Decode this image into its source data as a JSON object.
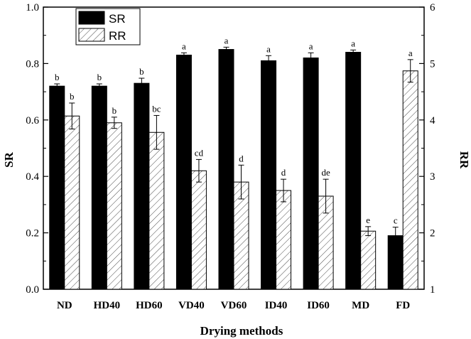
{
  "chart_data": {
    "type": "bar",
    "xlabel": "Drying methods",
    "ylabel_left": "SR",
    "ylabel_right": "RR",
    "ylim_left": [
      0.0,
      1.0
    ],
    "ylim_right": [
      1,
      6
    ],
    "yticks_left": [
      "0.0",
      "0.2",
      "0.4",
      "0.6",
      "0.8",
      "1.0"
    ],
    "yticks_right": [
      "1",
      "2",
      "3",
      "4",
      "5",
      "6"
    ],
    "categories": [
      "ND",
      "HD40",
      "HD60",
      "VD40",
      "VD60",
      "ID40",
      "ID60",
      "MD",
      "FD"
    ],
    "legend_position": "top-left",
    "series": [
      {
        "name": "SR",
        "axis": "left",
        "fill": "solid",
        "color": "#000000",
        "values": [
          0.72,
          0.72,
          0.73,
          0.83,
          0.85,
          0.81,
          0.82,
          0.84,
          0.19
        ],
        "errors": [
          0.008,
          0.008,
          0.018,
          0.008,
          0.008,
          0.018,
          0.018,
          0.008,
          0.03
        ],
        "letters": [
          "b",
          "b",
          "b",
          "a",
          "a",
          "a",
          "a",
          "a",
          "c"
        ]
      },
      {
        "name": "RR",
        "axis": "right",
        "fill": "hatched",
        "color": "#000000",
        "values": [
          4.07,
          3.95,
          3.78,
          3.1,
          2.9,
          2.75,
          2.65,
          2.03,
          4.87
        ],
        "errors": [
          0.23,
          0.1,
          0.3,
          0.2,
          0.3,
          0.2,
          0.3,
          0.08,
          0.2
        ],
        "letters": [
          "b",
          "b",
          "bc",
          "cd",
          "d",
          "d",
          "de",
          "e",
          "a"
        ]
      }
    ]
  }
}
